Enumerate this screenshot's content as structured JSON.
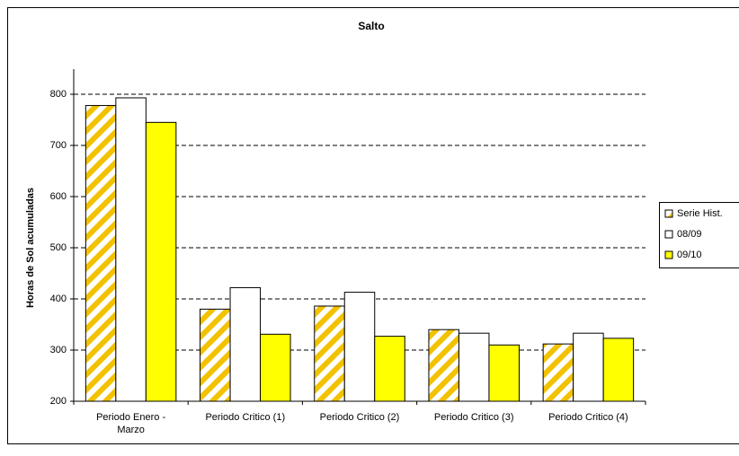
{
  "chart_data": {
    "type": "bar",
    "title": "Salto",
    "y_label": "Horas de Sol acumuladas",
    "categories": [
      "Periodo  Enero - Marzo",
      "Periodo Critico (1)",
      "Periodo Critico (2)",
      "Periodo Critico (3)",
      "Periodo Critico (4)"
    ],
    "series": [
      {
        "name": "Serie Hist.",
        "color": "#F2C200",
        "hatch": true,
        "values": [
          778,
          380,
          386,
          340,
          312
        ]
      },
      {
        "name": "08/09",
        "color": "#FFFFFF",
        "values": [
          793,
          422,
          413,
          333,
          333
        ]
      },
      {
        "name": "09/10",
        "color": "#FFFF00",
        "values": [
          745,
          331,
          327,
          310,
          323
        ]
      }
    ],
    "ylim": [
      200,
      800
    ],
    "yticks": [
      200,
      300,
      400,
      500,
      600,
      700,
      800
    ],
    "grid": true,
    "legend": "right"
  }
}
